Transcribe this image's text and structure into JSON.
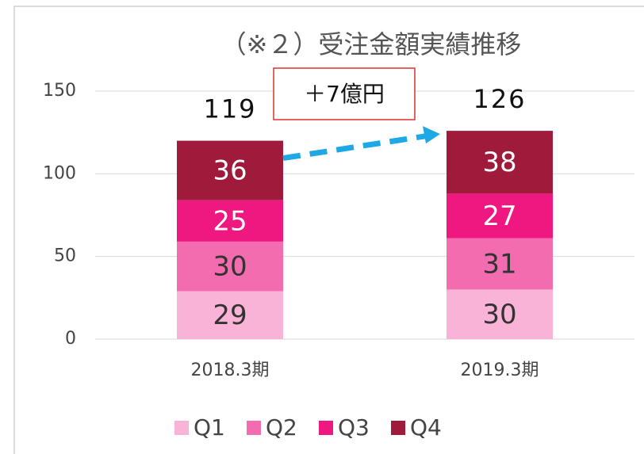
{
  "chart_data": {
    "type": "stacked-bar",
    "title": "（※２）受注金額実績推移",
    "categories": [
      "2018.3期",
      "2019.3期"
    ],
    "series": [
      {
        "name": "Q1",
        "color": "#f9b3d7",
        "values": [
          29,
          30
        ]
      },
      {
        "name": "Q2",
        "color": "#f36cb0",
        "values": [
          30,
          31
        ]
      },
      {
        "name": "Q3",
        "color": "#ef1780",
        "values": [
          25,
          27
        ]
      },
      {
        "name": "Q4",
        "color": "#a01a3c",
        "values": [
          36,
          38
        ]
      }
    ],
    "totals": [
      119,
      126
    ],
    "annotation": "＋7億円",
    "ylim": [
      0,
      150
    ],
    "yticks": [
      0,
      50,
      100,
      150
    ],
    "grid": true,
    "legend": "bottom"
  }
}
